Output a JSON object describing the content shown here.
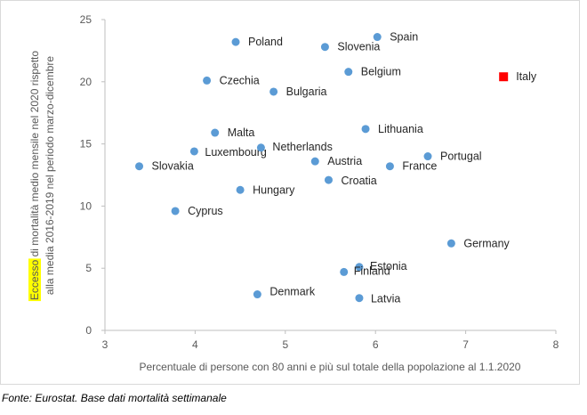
{
  "chart_data": {
    "type": "scatter",
    "title": "",
    "xlabel": "Percentuale di persone con 80 anni e più sul totale della popolazione al 1.1.2020",
    "ylabel": {
      "highlight": "Eccesso",
      "line1_rest": " di mortalità medio mensile nel 2020 rispetto",
      "line2": "alla media 2016-2019 nel periodo marzo-dicembre"
    },
    "xlim": [
      3,
      8
    ],
    "ylim": [
      0,
      25
    ],
    "x_ticks": [
      3,
      4,
      5,
      6,
      7,
      8
    ],
    "y_ticks": [
      0,
      5,
      10,
      15,
      20,
      25
    ],
    "grid": false,
    "colors": {
      "default": "#5b9bd5",
      "highlight": "#ff0000",
      "label_highlight": "#ff0000",
      "ylabel_highlight_bg": "#ffff00"
    },
    "points": [
      {
        "label": "Spain",
        "x": 6.02,
        "y": 23.6
      },
      {
        "label": "Poland",
        "x": 4.45,
        "y": 23.2
      },
      {
        "label": "Slovenia",
        "x": 5.44,
        "y": 22.8
      },
      {
        "label": "Belgium",
        "x": 5.7,
        "y": 20.8
      },
      {
        "label": "Italy",
        "x": 7.42,
        "y": 20.4,
        "highlight": true
      },
      {
        "label": "Czechia",
        "x": 4.13,
        "y": 20.1
      },
      {
        "label": "Bulgaria",
        "x": 4.87,
        "y": 19.2
      },
      {
        "label": "Malta",
        "x": 4.22,
        "y": 15.9
      },
      {
        "label": "Lithuania",
        "x": 5.89,
        "y": 16.2
      },
      {
        "label": "Luxembourg",
        "x": 3.99,
        "y": 14.4
      },
      {
        "label": "Netherlands",
        "x": 4.73,
        "y": 14.7
      },
      {
        "label": "Austria",
        "x": 5.33,
        "y": 13.6
      },
      {
        "label": "Portugal",
        "x": 6.58,
        "y": 14.0
      },
      {
        "label": "Slovakia",
        "x": 3.38,
        "y": 13.2
      },
      {
        "label": "France",
        "x": 6.16,
        "y": 13.2
      },
      {
        "label": "Croatia",
        "x": 5.48,
        "y": 12.1
      },
      {
        "label": "Hungary",
        "x": 4.5,
        "y": 11.3
      },
      {
        "label": "Cyprus",
        "x": 3.78,
        "y": 9.6
      },
      {
        "label": "Germany",
        "x": 6.84,
        "y": 7.0
      },
      {
        "label": "Estonia",
        "x": 5.82,
        "y": 5.1
      },
      {
        "label": "Finland",
        "x": 5.65,
        "y": 4.7
      },
      {
        "label": "Denmark",
        "x": 4.69,
        "y": 2.9
      },
      {
        "label": "Latvia",
        "x": 5.82,
        "y": 2.6
      }
    ]
  },
  "source_note": "Fonte: Eurostat. Base dati mortalità settimanale"
}
